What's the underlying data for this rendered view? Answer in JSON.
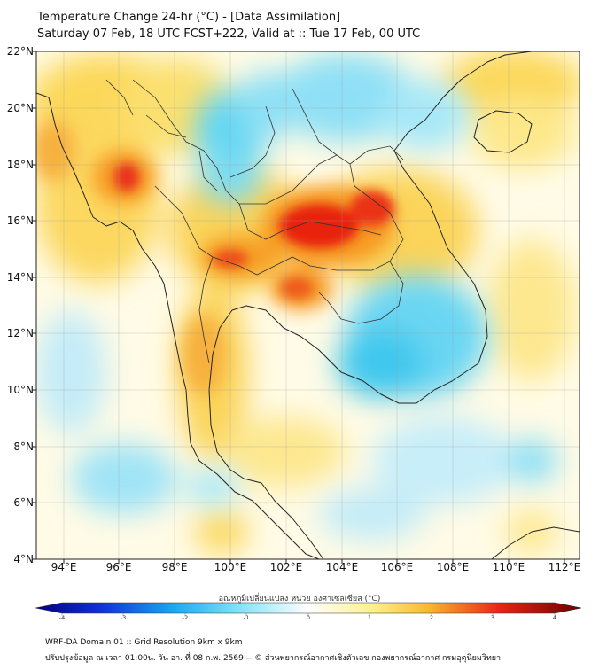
{
  "title_line1": "Temperature Change 24-hr (°C) - [Data Assimilation]",
  "title_line2": "Saturday 07 Feb, 18 UTC FCST+222, Valid at :: Tue 17 Feb, 00 UTC",
  "lat_labels": [
    "22°N",
    "20°N",
    "18°N",
    "16°N",
    "14°N",
    "12°N",
    "10°N",
    "8°N",
    "6°N",
    "4°N"
  ],
  "lon_labels": [
    "94°E",
    "96°E",
    "98°E",
    "100°E",
    "102°E",
    "104°E",
    "106°E",
    "108°E",
    "110°E",
    "112°E"
  ],
  "colorbar": {
    "title": "อุณหภูมิเปลี่ยนแปลง หน่วย องศาเซลเซียส (°C)",
    "ticks": [
      "-4",
      "-3",
      "-2",
      "-1",
      "0",
      "1",
      "2",
      "3",
      "4"
    ],
    "min": -4,
    "max": 4
  },
  "footer_line1": "WRF-DA Domain 01 :: Grid Resolution 9km x 9km",
  "footer_line2": "ปรับปรุงข้อมูล ณ เวลา 01:00น. วัน อา. ที่ 08 ก.พ. 2569 -- © ส่วนพยากรณ์อากาศเชิงตัวเลข กองพยากรณ์อากาศ กรมอุตุนิยมวิทยา",
  "colors": {
    "warm_core": "#e8180c",
    "warm": "#f79a1e",
    "mild_warm": "#fbe36a",
    "neutral": "#fffbe8",
    "cool": "#45cfee",
    "land_border": "#111111"
  }
}
